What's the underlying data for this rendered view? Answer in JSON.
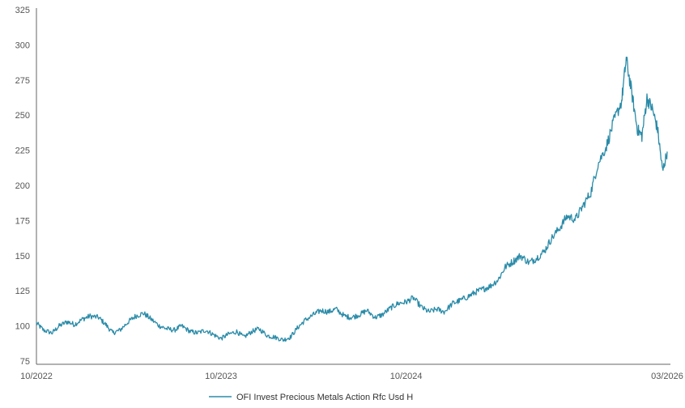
{
  "chart_data": {
    "type": "line",
    "title": "",
    "xlabel": "",
    "ylabel": "",
    "ylim": [
      75,
      325
    ],
    "y_ticks": [
      75,
      100,
      125,
      150,
      175,
      200,
      225,
      250,
      275,
      300,
      325
    ],
    "y_tick_labels": [
      "75",
      "100",
      "125",
      "150",
      "175",
      "200",
      "225",
      "250",
      "275",
      "300",
      "325"
    ],
    "x_ticks": [
      {
        "x": "2022-10",
        "label": "10/2022"
      },
      {
        "x": "2023-10",
        "label": "10/2023"
      },
      {
        "x": "2024-10",
        "label": "10/2024"
      },
      {
        "x": "2026-03",
        "label": "03/2026"
      }
    ],
    "xlim": [
      "2022-10",
      "2026-03"
    ],
    "grid": false,
    "legend_position": "bottom-center",
    "series": [
      {
        "name": "OFI Invest Precious Metals Action Rfc Usd H",
        "color": "#2a8ba8",
        "points": [
          [
            "2022-10-01",
            102
          ],
          [
            "2022-10-15",
            97
          ],
          [
            "2022-11-01",
            95
          ],
          [
            "2022-11-15",
            100
          ],
          [
            "2022-12-01",
            103
          ],
          [
            "2022-12-15",
            101
          ],
          [
            "2023-01-01",
            105
          ],
          [
            "2023-01-15",
            107
          ],
          [
            "2023-02-01",
            106
          ],
          [
            "2023-02-15",
            101
          ],
          [
            "2023-03-01",
            95
          ],
          [
            "2023-03-15",
            97
          ],
          [
            "2023-04-01",
            103
          ],
          [
            "2023-04-15",
            107
          ],
          [
            "2023-05-01",
            109
          ],
          [
            "2023-05-15",
            105
          ],
          [
            "2023-06-01",
            100
          ],
          [
            "2023-06-15",
            98
          ],
          [
            "2023-07-01",
            97
          ],
          [
            "2023-07-15",
            100
          ],
          [
            "2023-08-01",
            96
          ],
          [
            "2023-08-15",
            95
          ],
          [
            "2023-09-01",
            97
          ],
          [
            "2023-09-15",
            94
          ],
          [
            "2023-10-01",
            91
          ],
          [
            "2023-10-15",
            94
          ],
          [
            "2023-11-01",
            96
          ],
          [
            "2023-11-15",
            92
          ],
          [
            "2023-12-01",
            96
          ],
          [
            "2023-12-15",
            98
          ],
          [
            "2024-01-01",
            93
          ],
          [
            "2024-01-15",
            92
          ],
          [
            "2024-02-01",
            90
          ],
          [
            "2024-02-15",
            92
          ],
          [
            "2024-03-01",
            99
          ],
          [
            "2024-03-15",
            104
          ],
          [
            "2024-04-01",
            108
          ],
          [
            "2024-04-15",
            111
          ],
          [
            "2024-05-01",
            110
          ],
          [
            "2024-05-15",
            112
          ],
          [
            "2024-06-01",
            107
          ],
          [
            "2024-06-15",
            106
          ],
          [
            "2024-07-01",
            108
          ],
          [
            "2024-07-15",
            111
          ],
          [
            "2024-08-01",
            106
          ],
          [
            "2024-08-15",
            108
          ],
          [
            "2024-09-01",
            113
          ],
          [
            "2024-09-15",
            116
          ],
          [
            "2024-10-01",
            117
          ],
          [
            "2024-10-15",
            120
          ],
          [
            "2024-11-01",
            113
          ],
          [
            "2024-11-15",
            110
          ],
          [
            "2024-12-01",
            112
          ],
          [
            "2024-12-15",
            110
          ],
          [
            "2025-01-01",
            116
          ],
          [
            "2025-01-15",
            118
          ],
          [
            "2025-02-01",
            121
          ],
          [
            "2025-02-15",
            124
          ],
          [
            "2025-03-01",
            126
          ],
          [
            "2025-03-15",
            128
          ],
          [
            "2025-04-01",
            133
          ],
          [
            "2025-04-15",
            142
          ],
          [
            "2025-05-01",
            146
          ],
          [
            "2025-05-15",
            150
          ],
          [
            "2025-06-01",
            145
          ],
          [
            "2025-06-15",
            148
          ],
          [
            "2025-07-01",
            153
          ],
          [
            "2025-07-15",
            162
          ],
          [
            "2025-08-01",
            170
          ],
          [
            "2025-08-15",
            178
          ],
          [
            "2025-09-01",
            176
          ],
          [
            "2025-09-15",
            185
          ],
          [
            "2025-10-01",
            195
          ],
          [
            "2025-10-15",
            215
          ],
          [
            "2025-11-01",
            228
          ],
          [
            "2025-11-15",
            245
          ],
          [
            "2025-12-01",
            260
          ],
          [
            "2025-12-10",
            290
          ],
          [
            "2025-12-20",
            268
          ],
          [
            "2026-01-01",
            240
          ],
          [
            "2026-01-10",
            235
          ],
          [
            "2026-01-20",
            262
          ],
          [
            "2026-01-31",
            254
          ],
          [
            "2026-02-10",
            240
          ],
          [
            "2026-02-20",
            210
          ],
          [
            "2026-03-01",
            224
          ]
        ]
      }
    ]
  }
}
